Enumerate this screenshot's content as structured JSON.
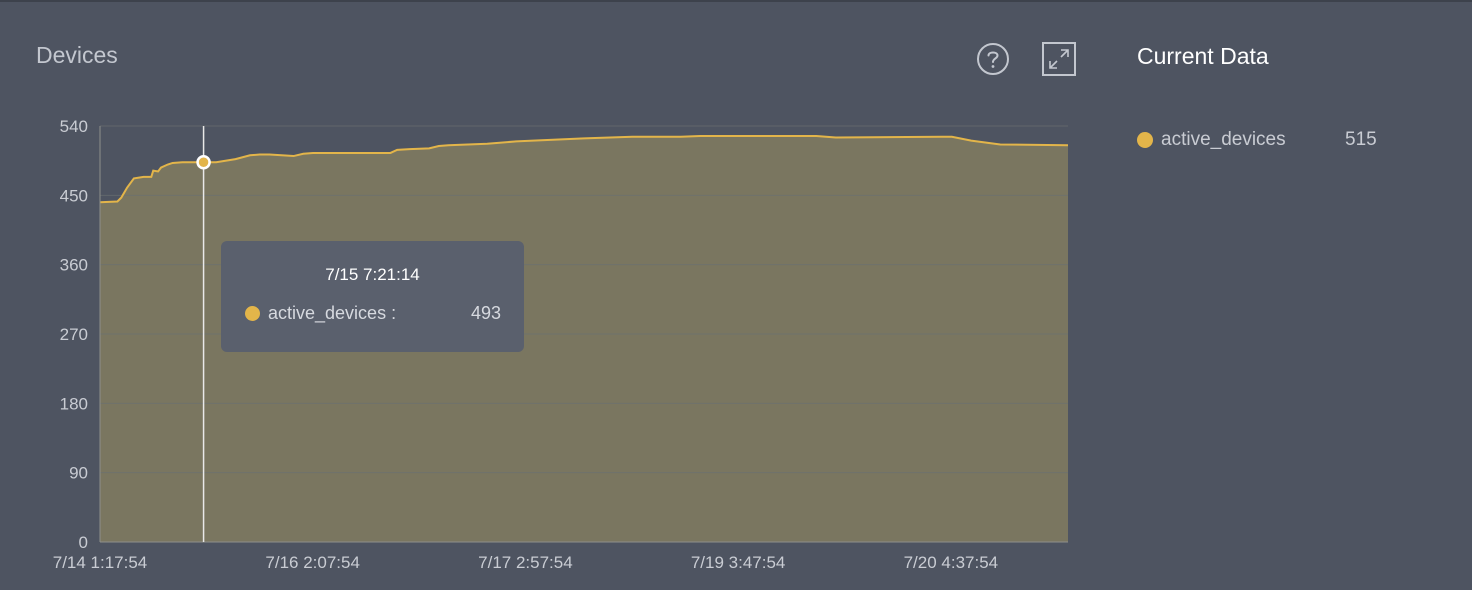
{
  "panel": {
    "title": "Devices",
    "help_icon": "question-circle-icon",
    "expand_icon": "expand-arrows-icon"
  },
  "legend": {
    "title": "Current Data",
    "items": [
      {
        "name": "active_devices",
        "value": "515",
        "color": "#e3b54a"
      }
    ]
  },
  "tooltip": {
    "time": "7/15 7:21:14",
    "series": "active_devices :",
    "value": "493",
    "color": "#e3b54a"
  },
  "colors": {
    "background": "#4e5461",
    "line": "#e3b54a",
    "area": "#7a7660",
    "grid": "#6a6f70"
  },
  "chart_data": {
    "type": "area",
    "title": "Devices",
    "xlabel": "",
    "ylabel": "",
    "ylim": [
      0,
      540
    ],
    "yticks": [
      "0",
      "90",
      "180",
      "270",
      "360",
      "450",
      "540"
    ],
    "xticks": [
      "7/14 1:17:54",
      "7/16 2:07:54",
      "7/17 2:57:54",
      "7/19 3:47:54",
      "7/20 4:37:54"
    ],
    "xtick_fraction": [
      0.0,
      0.2197,
      0.4395,
      0.6592,
      0.879
    ],
    "grid": true,
    "legend": "right",
    "series": [
      {
        "name": "active_devices",
        "x": [
          0.0,
          0.018,
          0.022,
          0.028,
          0.035,
          0.045,
          0.053,
          0.055,
          0.06,
          0.063,
          0.07,
          0.075,
          0.085,
          0.1,
          0.107,
          0.12,
          0.14,
          0.155,
          0.165,
          0.175,
          0.2,
          0.21,
          0.22,
          0.26,
          0.3,
          0.307,
          0.32,
          0.34,
          0.35,
          0.36,
          0.4,
          0.43,
          0.5,
          0.55,
          0.6,
          0.62,
          0.74,
          0.76,
          0.87,
          0.88,
          0.9,
          0.93,
          1.0
        ],
        "y": [
          441,
          442,
          447,
          460,
          472,
          474,
          474,
          482,
          481,
          486,
          490,
          492,
          493,
          493,
          493,
          493,
          497,
          502,
          503,
          503,
          501,
          504,
          505,
          505,
          505,
          509,
          510,
          511,
          514,
          515,
          517,
          520,
          524,
          526,
          526,
          527,
          527,
          525,
          526,
          526,
          521,
          516,
          515
        ]
      }
    ],
    "highlight": {
      "x": 0.107,
      "y": 493,
      "label": "7/15 7:21:14"
    }
  }
}
